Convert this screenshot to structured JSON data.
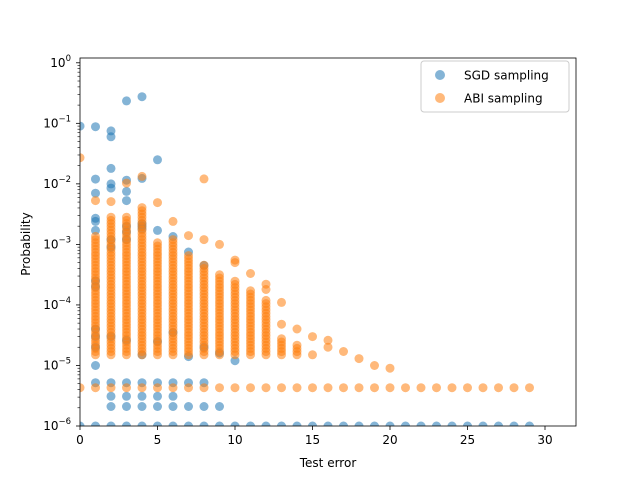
{
  "chart_data": {
    "type": "scatter",
    "title": "",
    "xlabel": "Test error",
    "ylabel": "Probability",
    "xlim": [
      0,
      32
    ],
    "ylim": [
      1e-06,
      1.2
    ],
    "yscale": "log",
    "grid": false,
    "legend_position": "top-right",
    "x_ticks": [
      0,
      5,
      10,
      15,
      20,
      25,
      30
    ],
    "y_ticks": [
      {
        "value": 1e-06,
        "label_base": "10",
        "label_exp": "−6"
      },
      {
        "value": 1e-05,
        "label_base": "10",
        "label_exp": "−5"
      },
      {
        "value": 0.0001,
        "label_base": "10",
        "label_exp": "−4"
      },
      {
        "value": 0.001,
        "label_base": "10",
        "label_exp": "−3"
      },
      {
        "value": 0.01,
        "label_base": "10",
        "label_exp": "−2"
      },
      {
        "value": 0.1,
        "label_base": "10",
        "label_exp": "−1"
      },
      {
        "value": 1,
        "label_base": "10",
        "label_exp": "0"
      }
    ],
    "series": [
      {
        "name": "SGD sampling",
        "color": "#1f77b4",
        "opacity": 0.55,
        "points": [
          [
            0,
            1e-06
          ],
          [
            1,
            1e-06
          ],
          [
            2,
            1e-06
          ],
          [
            3,
            1e-06
          ],
          [
            4,
            1e-06
          ],
          [
            5,
            1e-06
          ],
          [
            6,
            1e-06
          ],
          [
            7,
            1e-06
          ],
          [
            8,
            1e-06
          ],
          [
            9,
            1e-06
          ],
          [
            10,
            1e-06
          ],
          [
            11,
            1e-06
          ],
          [
            12,
            1e-06
          ],
          [
            13,
            1e-06
          ],
          [
            14,
            1e-06
          ],
          [
            15,
            1e-06
          ],
          [
            16,
            1e-06
          ],
          [
            17,
            1e-06
          ],
          [
            18,
            1e-06
          ],
          [
            19,
            1e-06
          ],
          [
            20,
            1e-06
          ],
          [
            21,
            1e-06
          ],
          [
            22,
            1e-06
          ],
          [
            23,
            1e-06
          ],
          [
            24,
            1e-06
          ],
          [
            25,
            1e-06
          ],
          [
            26,
            1e-06
          ],
          [
            27,
            1e-06
          ],
          [
            28,
            1e-06
          ],
          [
            29,
            1e-06
          ],
          [
            2,
            2.1e-06
          ],
          [
            3,
            2.1e-06
          ],
          [
            4,
            2.1e-06
          ],
          [
            5,
            2.1e-06
          ],
          [
            6,
            2.1e-06
          ],
          [
            7,
            2.1e-06
          ],
          [
            8,
            2.1e-06
          ],
          [
            9,
            2.1e-06
          ],
          [
            2,
            3.1e-06
          ],
          [
            3,
            3.1e-06
          ],
          [
            4,
            3.1e-06
          ],
          [
            5,
            3.1e-06
          ],
          [
            6,
            3.1e-06
          ],
          [
            1,
            5.2e-06
          ],
          [
            2,
            5.2e-06
          ],
          [
            3,
            5.2e-06
          ],
          [
            4,
            5.2e-06
          ],
          [
            5,
            5.2e-06
          ],
          [
            6,
            5.2e-06
          ],
          [
            7,
            5.2e-06
          ],
          [
            8,
            5.2e-06
          ],
          [
            1,
            1e-05
          ],
          [
            1,
            2e-05
          ],
          [
            1,
            3e-05
          ],
          [
            1,
            4e-05
          ],
          [
            1,
            0.0002
          ],
          [
            1,
            0.00025
          ],
          [
            0,
            0.09
          ],
          [
            1,
            0.088
          ],
          [
            2,
            0.075
          ],
          [
            2,
            0.06
          ],
          [
            3,
            0.235
          ],
          [
            4,
            0.275
          ],
          [
            5,
            0.025
          ],
          [
            1,
            0.012
          ],
          [
            1,
            0.007
          ],
          [
            2,
            0.018
          ],
          [
            2,
            0.01
          ],
          [
            2,
            0.0085
          ],
          [
            3,
            0.0115
          ],
          [
            3,
            0.0075
          ],
          [
            3,
            0.0053
          ],
          [
            4,
            0.0123
          ],
          [
            4,
            0.0022
          ],
          [
            4,
            0.002
          ],
          [
            4,
            0.0018
          ],
          [
            1,
            0.0027
          ],
          [
            1,
            0.0024
          ],
          [
            1,
            0.0017
          ],
          [
            2,
            0.0012
          ],
          [
            2,
            0.0009
          ],
          [
            3,
            0.002
          ],
          [
            3,
            0.0016
          ],
          [
            3,
            0.0012
          ],
          [
            5,
            0.0017
          ],
          [
            6,
            0.00135
          ],
          [
            7,
            0.00075
          ],
          [
            8,
            0.00045
          ],
          [
            2,
            3e-05
          ],
          [
            3,
            2.6e-05
          ],
          [
            4,
            1.5e-05
          ],
          [
            5,
            2.5e-05
          ],
          [
            6,
            3.5e-05
          ],
          [
            7,
            1.4e-05
          ],
          [
            8,
            2e-05
          ],
          [
            9,
            1.6e-05
          ],
          [
            10,
            1.2e-05
          ]
        ]
      },
      {
        "name": "ABI sampling",
        "color": "#ff7f0e",
        "opacity": 0.55,
        "points": [
          [
            0,
            0.027
          ],
          [
            8,
            0.0121
          ],
          [
            4,
            0.0133
          ],
          [
            3,
            0.0103
          ],
          [
            2,
            0.0051
          ],
          [
            1,
            0.0053
          ],
          [
            5,
            0.0049
          ],
          [
            6,
            0.0024
          ],
          [
            7,
            0.0014
          ],
          [
            8,
            0.0012
          ],
          [
            9,
            0.001
          ],
          [
            10,
            0.00055
          ],
          [
            10,
            0.0005
          ],
          [
            11,
            0.00033
          ],
          [
            12,
            0.00022
          ],
          [
            12,
            0.00018
          ],
          [
            13,
            0.00011
          ],
          [
            13,
            4.8e-05
          ],
          [
            14,
            4e-05
          ],
          [
            15,
            3e-05
          ],
          [
            16,
            2.6e-05
          ],
          [
            16,
            2e-05
          ],
          [
            17,
            1.7e-05
          ],
          [
            18,
            1.3e-05
          ],
          [
            19,
            1e-05
          ],
          [
            20,
            9e-06
          ]
        ],
        "bands": [
          {
            "x": 1,
            "top": 0.0015
          },
          {
            "x": 2,
            "top": 0.003
          },
          {
            "x": 3,
            "top": 0.003
          },
          {
            "x": 4,
            "top": 0.0045
          },
          {
            "x": 5,
            "top": 0.0011
          },
          {
            "x": 6,
            "top": 0.0012
          },
          {
            "x": 7,
            "top": 0.0007
          },
          {
            "x": 8,
            "top": 0.0005
          },
          {
            "x": 9,
            "top": 0.00035
          },
          {
            "x": 10,
            "top": 0.00025
          },
          {
            "x": 11,
            "top": 0.00018
          },
          {
            "x": 12,
            "top": 0.00012
          },
          {
            "x": 13,
            "top": 3e-05
          },
          {
            "x": 14,
            "top": 2.2e-05
          },
          {
            "x": 15,
            "top": 1.6e-05
          },
          {
            "x": 16,
            "top": 1.1e-05
          },
          {
            "x": 17,
            "top": 8e-06
          },
          {
            "x": 18,
            "top": 8e-06
          },
          {
            "x": 19,
            "top": 8e-06
          },
          {
            "x": 20,
            "top": 8e-06
          }
        ],
        "baseline": {
          "value": 4.3e-06,
          "x_from": 0,
          "x_to": 29
        }
      }
    ]
  }
}
